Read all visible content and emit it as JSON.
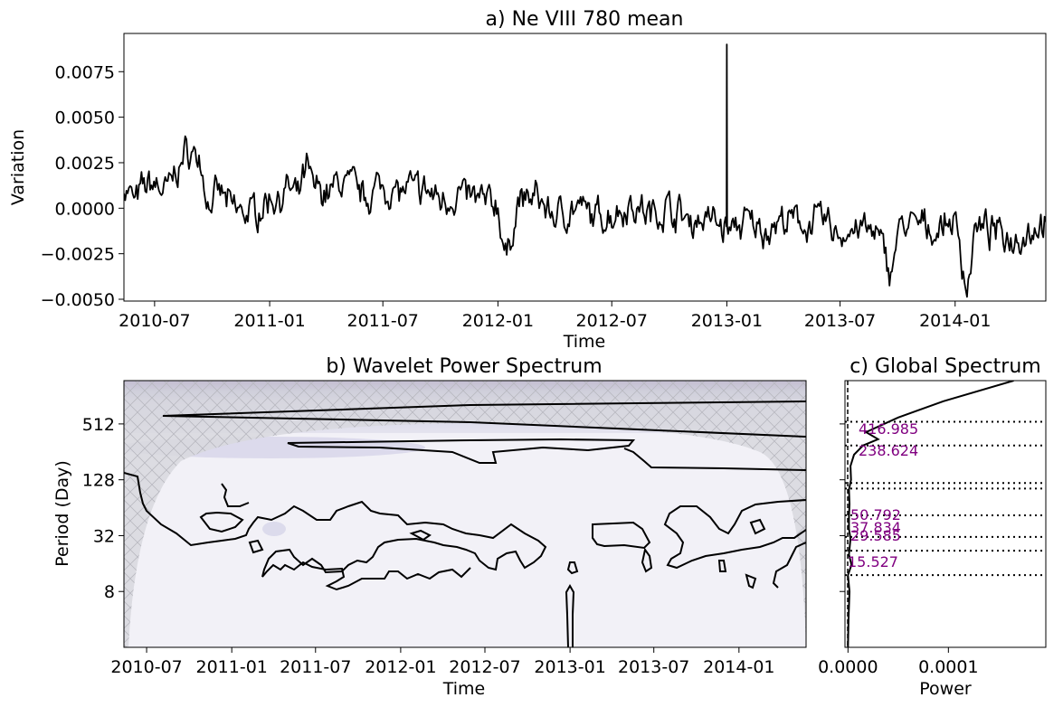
{
  "chart_data": [
    {
      "panel": "a",
      "type": "line",
      "title": "a) Ne VIII 780 mean",
      "xlabel": "Time",
      "ylabel": "Variation",
      "xlim": [
        "2010-05-13",
        "2014-05-26"
      ],
      "ylim": [
        -0.0051,
        0.0096
      ],
      "xticks": [
        "2010-07",
        "2011-01",
        "2011-07",
        "2012-01",
        "2012-07",
        "2013-01",
        "2013-07",
        "2014-01"
      ],
      "xtick_dates": [
        "2010-07-01",
        "2011-01-01",
        "2011-07-01",
        "2012-01-01",
        "2012-07-01",
        "2013-01-01",
        "2013-07-01",
        "2014-01-01"
      ],
      "yticks": [
        -0.005,
        -0.0025,
        0.0,
        0.0025,
        0.005,
        0.0075
      ],
      "ytick_labels": [
        "−0.0050",
        "−0.0025",
        "0.0000",
        "0.0025",
        "0.0050",
        "0.0075"
      ],
      "line_color": "#000000",
      "series": [
        {
          "x": [
            "2010-05-13",
            "2010-06-01",
            "2010-06-15",
            "2010-07-01",
            "2010-07-20",
            "2010-08-10",
            "2010-08-25",
            "2010-09-10",
            "2010-09-25",
            "2010-10-15",
            "2010-11-01",
            "2010-12-01",
            "2011-01-01",
            "2011-02-01",
            "2011-02-15",
            "2011-03-01",
            "2011-03-10",
            "2011-04-01",
            "2011-05-01",
            "2011-06-01",
            "2011-07-01",
            "2011-08-01",
            "2011-09-01",
            "2011-10-01",
            "2011-11-01",
            "2011-12-01",
            "2012-01-01",
            "2012-01-15",
            "2012-02-01",
            "2012-03-01",
            "2012-04-01",
            "2012-05-01",
            "2012-06-01",
            "2012-07-01",
            "2012-08-01",
            "2012-09-01",
            "2012-10-01",
            "2012-11-01",
            "2012-12-01",
            "2012-12-28",
            "2013-01-01",
            "2013-01-04",
            "2013-02-01",
            "2013-03-01",
            "2013-04-01",
            "2013-05-01",
            "2013-06-01",
            "2013-07-01",
            "2013-08-01",
            "2013-09-01",
            "2013-09-20",
            "2013-10-01",
            "2013-11-01",
            "2013-12-01",
            "2014-01-01",
            "2014-01-20",
            "2014-02-01",
            "2014-03-01",
            "2014-04-01",
            "2014-05-01",
            "2014-05-26"
          ],
          "y": [
            0.0012,
            0.0003,
            0.0012,
            0.0014,
            0.0009,
            0.0024,
            0.0032,
            0.0028,
            0.0002,
            0.0008,
            0.0,
            -0.0003,
            0.0005,
            0.001,
            0.0003,
            0.0022,
            0.0012,
            0.0009,
            0.0015,
            0.0007,
            0.0012,
            0.0009,
            0.001,
            0.0005,
            0.0008,
            0.0004,
            0.0002,
            -0.0031,
            0.0004,
            0.0006,
            -0.0004,
            0.0,
            -0.0005,
            -0.0003,
            0.0003,
            -0.0004,
            0.0001,
            -0.0007,
            -0.0005,
            -0.001,
            0.009,
            -0.0012,
            -0.0008,
            -0.0012,
            -0.0007,
            -0.0009,
            -0.0006,
            -0.0015,
            -0.001,
            -0.0017,
            -0.0035,
            -0.0012,
            -0.0009,
            -0.0012,
            -0.0006,
            -0.0045,
            -0.0012,
            -0.0013,
            -0.0016,
            -0.0012,
            -0.0006
          ]
        }
      ]
    },
    {
      "panel": "b",
      "type": "heatmap",
      "title": "b) Wavelet Power Spectrum",
      "xlabel": "Time",
      "ylabel": "Period (Day)",
      "xticks": [
        "2010-07",
        "2011-01",
        "2011-07",
        "2012-01",
        "2012-07",
        "2013-01",
        "2013-07",
        "2014-01"
      ],
      "yticks": [
        8,
        32,
        128,
        512
      ],
      "y_scale": "log2",
      "ylim": [
        2,
        1500
      ],
      "colormap": "Purples",
      "cone_of_influence_hatch": true,
      "significance_contours": true
    },
    {
      "panel": "c",
      "type": "line",
      "title": "c) Global Spectrum",
      "xlabel": "Power",
      "xticks": [
        0.0,
        0.0001
      ],
      "xtick_labels": [
        "0.0000",
        "0.0001"
      ],
      "xlim": [
        -3e-06,
        0.000197
      ],
      "y_scale": "log2",
      "ylim": [
        2,
        1500
      ],
      "series": [
        {
          "power": [
            0.0,
            5e-07,
            1.5e-06,
            0.0,
            3.5e-06,
            1e-06,
            2.5e-06,
            1e-06,
            1e-06,
            1.5e-06,
            1e-06,
            3e-06,
            2.5e-06,
            6e-06,
            1.5e-05,
            3e-05,
            1.8e-05,
            5e-05,
            9.5e-05,
            0.000165
          ],
          "period": [
            2.0,
            4.0,
            8.0,
            12.0,
            15.5,
            20.0,
            29.6,
            37.8,
            50.8,
            70.0,
            100.0,
            128.0,
            180.0,
            238.6,
            300.0,
            350.0,
            417.0,
            600.0,
            900.0,
            1500.0
          ]
        }
      ],
      "peak_periods": [
        "416.985",
        "238.624",
        "50.792",
        "37.834",
        "29.585",
        "15.527"
      ],
      "peak_label_color": "#800080",
      "dotted_periods": [
        540,
        300,
        118,
        103,
        53,
        31,
        22,
        12
      ]
    }
  ]
}
